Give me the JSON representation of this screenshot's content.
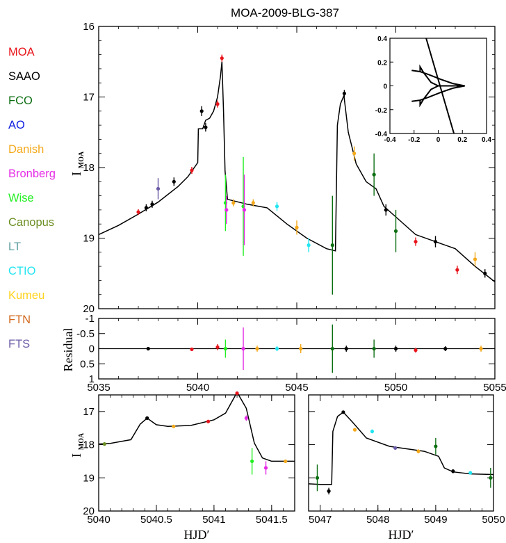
{
  "chart_data": {
    "type": "scatter",
    "title": "MOA-2009-BLG-387",
    "legend": {
      "placement": "left",
      "entries": [
        {
          "name": "MOA",
          "color": "#e8141b"
        },
        {
          "name": "SAAO",
          "color": "#000000"
        },
        {
          "name": "FCO",
          "color": "#0b6e11"
        },
        {
          "name": "AO",
          "color": "#1020e0"
        },
        {
          "name": "Danish",
          "color": "#f4a91a"
        },
        {
          "name": "Bronberg",
          "color": "#e62be6"
        },
        {
          "name": "Wise",
          "color": "#22ee22"
        },
        {
          "name": "Canopus",
          "color": "#6b8e23"
        },
        {
          "name": "LT",
          "color": "#5f9ea0"
        },
        {
          "name": "CTIO",
          "color": "#22e5f0"
        },
        {
          "name": "Kumeu",
          "color": "#ffd21a"
        },
        {
          "name": "FTN",
          "color": "#d2691e"
        },
        {
          "name": "FTS",
          "color": "#6a5aa6"
        }
      ]
    },
    "panels": {
      "main": {
        "ylabel": "I",
        "ylabel_sub": "MOA",
        "xlim": [
          5035,
          5055
        ],
        "ylim": [
          16,
          20
        ],
        "y_inverted": true,
        "xticks": [
          "5035",
          "5040",
          "5045",
          "5050",
          "5055"
        ],
        "yticks": [
          "16",
          "17",
          "18",
          "19",
          "20"
        ],
        "model": [
          [
            5035,
            18.95
          ],
          [
            5036,
            18.82
          ],
          [
            5037,
            18.66
          ],
          [
            5038,
            18.49
          ],
          [
            5039,
            18.27
          ],
          [
            5039.5,
            18.13
          ],
          [
            5040,
            17.93
          ],
          [
            5040.03,
            17.45
          ],
          [
            5040.25,
            17.45
          ],
          [
            5040.4,
            17.33
          ],
          [
            5040.6,
            17.3
          ],
          [
            5040.8,
            17.2
          ],
          [
            5041.0,
            17.0
          ],
          [
            5041.15,
            16.7
          ],
          [
            5041.22,
            16.5
          ],
          [
            5041.3,
            17.2
          ],
          [
            5041.38,
            18.05
          ],
          [
            5041.5,
            18.45
          ],
          [
            5042.5,
            18.52
          ],
          [
            5043.5,
            18.57
          ],
          [
            5044.5,
            18.8
          ],
          [
            5045.5,
            19.0
          ],
          [
            5046.5,
            19.15
          ],
          [
            5046.95,
            19.18
          ],
          [
            5047.05,
            17.4
          ],
          [
            5047.2,
            17.1
          ],
          [
            5047.38,
            16.98
          ],
          [
            5047.6,
            17.5
          ],
          [
            5048,
            17.95
          ],
          [
            5048.5,
            18.2
          ],
          [
            5049,
            18.3
          ],
          [
            5049.4,
            18.55
          ],
          [
            5050,
            18.7
          ],
          [
            5051,
            18.95
          ],
          [
            5052,
            19.05
          ],
          [
            5053,
            19.15
          ],
          [
            5054,
            19.4
          ],
          [
            5055,
            19.62
          ]
        ],
        "inset": {
          "xlim": [
            -0.4,
            0.4
          ],
          "ylim": [
            -0.4,
            0.4
          ],
          "xticks": [
            "-0.4",
            "-0.2",
            "0",
            "0.2",
            "0.4"
          ],
          "yticks": [
            "0.4",
            "0.2",
            "0",
            "-0.2",
            "-0.4"
          ],
          "caustic_upper": [
            [
              -0.22,
              0.13
            ],
            [
              -0.15,
              0.12
            ],
            [
              -0.08,
              0.095
            ],
            [
              0.02,
              0.055
            ],
            [
              0.12,
              0.02
            ],
            [
              0.22,
              0.0
            ],
            [
              0.1,
              0.0
            ],
            [
              0.0,
              0.0
            ],
            [
              -0.06,
              0.03
            ],
            [
              -0.12,
              0.11
            ],
            [
              -0.15,
              0.16
            ],
            [
              -0.15,
              0.12
            ],
            [
              -0.22,
              0.13
            ]
          ],
          "caustic_lower": [
            [
              -0.22,
              -0.13
            ],
            [
              -0.15,
              -0.12
            ],
            [
              -0.08,
              -0.095
            ],
            [
              0.02,
              -0.055
            ],
            [
              0.12,
              -0.02
            ],
            [
              0.22,
              0.0
            ],
            [
              0.1,
              0.0
            ],
            [
              0.0,
              0.0
            ],
            [
              -0.06,
              -0.03
            ],
            [
              -0.12,
              -0.11
            ],
            [
              -0.15,
              -0.16
            ],
            [
              -0.15,
              -0.12
            ],
            [
              -0.22,
              -0.13
            ]
          ],
          "trajectory": [
            [
              -0.1,
              0.4
            ],
            [
              0.015,
              0.0
            ],
            [
              0.13,
              -0.4
            ]
          ]
        },
        "points": [
          {
            "series": "SAAO",
            "x": 5037.4,
            "y": 18.57,
            "err": 0.05
          },
          {
            "series": "MOA",
            "x": 5037.0,
            "y": 18.63,
            "err": 0.04
          },
          {
            "series": "SAAO",
            "x": 5037.7,
            "y": 18.52,
            "err": 0.05
          },
          {
            "series": "FTS",
            "x": 5038.0,
            "y": 18.3,
            "err": 0.15
          },
          {
            "series": "SAAO",
            "x": 5038.8,
            "y": 18.2,
            "err": 0.06
          },
          {
            "series": "MOA",
            "x": 5039.7,
            "y": 18.04,
            "err": 0.05
          },
          {
            "series": "SAAO",
            "x": 5040.2,
            "y": 17.2,
            "err": 0.07
          },
          {
            "series": "SAAO",
            "x": 5040.4,
            "y": 17.43,
            "err": 0.06
          },
          {
            "series": "MOA",
            "x": 5041.0,
            "y": 17.1,
            "err": 0.05
          },
          {
            "series": "MOA",
            "x": 5041.22,
            "y": 16.45,
            "err": 0.05
          },
          {
            "series": "Wise",
            "x": 5041.4,
            "y": 18.5,
            "err": 0.4
          },
          {
            "series": "Bronberg",
            "x": 5041.45,
            "y": 18.6,
            "err": 0.2
          },
          {
            "series": "Wise",
            "x": 5042.3,
            "y": 18.55,
            "err": 0.7
          },
          {
            "series": "Bronberg",
            "x": 5042.35,
            "y": 18.6,
            "err": 0.5
          },
          {
            "series": "Danish",
            "x": 5041.8,
            "y": 18.5,
            "err": 0.05
          },
          {
            "series": "Danish",
            "x": 5042.8,
            "y": 18.5,
            "err": 0.05
          },
          {
            "series": "CTIO",
            "x": 5044.0,
            "y": 18.55,
            "err": 0.06
          },
          {
            "series": "Danish",
            "x": 5045.0,
            "y": 18.85,
            "err": 0.1
          },
          {
            "series": "CTIO",
            "x": 5045.6,
            "y": 19.1,
            "err": 0.1
          },
          {
            "series": "FCO",
            "x": 5046.8,
            "y": 19.1,
            "err": 0.7
          },
          {
            "series": "SAAO",
            "x": 5047.4,
            "y": 16.95,
            "err": 0.05
          },
          {
            "series": "Danish",
            "x": 5047.9,
            "y": 17.8,
            "err": 0.1
          },
          {
            "series": "FCO",
            "x": 5048.9,
            "y": 18.1,
            "err": 0.3
          },
          {
            "series": "SAAO",
            "x": 5049.5,
            "y": 18.6,
            "err": 0.08
          },
          {
            "series": "FCO",
            "x": 5050.0,
            "y": 18.9,
            "err": 0.3
          },
          {
            "series": "MOA",
            "x": 5051.0,
            "y": 19.05,
            "err": 0.06
          },
          {
            "series": "SAAO",
            "x": 5052.0,
            "y": 19.05,
            "err": 0.08
          },
          {
            "series": "MOA",
            "x": 5053.1,
            "y": 19.45,
            "err": 0.06
          },
          {
            "series": "Danish",
            "x": 5054.0,
            "y": 19.3,
            "err": 0.1
          },
          {
            "series": "SAAO",
            "x": 5054.5,
            "y": 19.5,
            "err": 0.06
          }
        ]
      },
      "residual": {
        "ylabel": "Residual",
        "ylim": [
          -1,
          1
        ],
        "y_inverted": true,
        "yticks": [
          "-1",
          "-0.5",
          "0",
          "0.5",
          "1"
        ],
        "xticks": [
          "5035",
          "5040",
          "5045",
          "5050",
          "5055"
        ],
        "points": [
          {
            "series": "SAAO",
            "x": 5037.5,
            "y": 0.0,
            "err": 0.05
          },
          {
            "series": "MOA",
            "x": 5039.7,
            "y": 0.02,
            "err": 0.05
          },
          {
            "series": "MOA",
            "x": 5041.0,
            "y": -0.05,
            "err": 0.1
          },
          {
            "series": "Wise",
            "x": 5041.4,
            "y": 0.0,
            "err": 0.3
          },
          {
            "series": "Bronberg",
            "x": 5042.3,
            "y": 0.0,
            "err": 0.7
          },
          {
            "series": "Danish",
            "x": 5043.0,
            "y": 0.0,
            "err": 0.1
          },
          {
            "series": "CTIO",
            "x": 5044.0,
            "y": 0.0,
            "err": 0.08
          },
          {
            "series": "Danish",
            "x": 5045.2,
            "y": 0.0,
            "err": 0.15
          },
          {
            "series": "FCO",
            "x": 5046.8,
            "y": 0.0,
            "err": 0.8
          },
          {
            "series": "SAAO",
            "x": 5047.5,
            "y": 0.0,
            "err": 0.1
          },
          {
            "series": "FCO",
            "x": 5048.9,
            "y": 0.0,
            "err": 0.3
          },
          {
            "series": "SAAO",
            "x": 5050.0,
            "y": 0.0,
            "err": 0.1
          },
          {
            "series": "MOA",
            "x": 5051.0,
            "y": 0.05,
            "err": 0.08
          },
          {
            "series": "SAAO",
            "x": 5052.5,
            "y": 0.0,
            "err": 0.08
          },
          {
            "series": "Danish",
            "x": 5054.3,
            "y": 0.0,
            "err": 0.1
          }
        ]
      },
      "zoom_left": {
        "xlabel": "HJD′",
        "ylabel": "I",
        "ylabel_sub": "MOA",
        "xlim": [
          5040.0,
          5041.7
        ],
        "ylim": [
          16.5,
          20
        ],
        "y_inverted": true,
        "xticks": [
          "5040",
          "5040.5",
          "5041",
          "5041.5"
        ],
        "yticks": [
          "17",
          "18",
          "19",
          "20"
        ],
        "model": [
          [
            5040.0,
            17.98
          ],
          [
            5040.1,
            17.96
          ],
          [
            5040.2,
            17.9
          ],
          [
            5040.28,
            17.85
          ],
          [
            5040.36,
            17.38
          ],
          [
            5040.42,
            17.2
          ],
          [
            5040.5,
            17.4
          ],
          [
            5040.6,
            17.45
          ],
          [
            5040.8,
            17.42
          ],
          [
            5041.0,
            17.25
          ],
          [
            5041.1,
            17.05
          ],
          [
            5041.2,
            16.42
          ],
          [
            5041.28,
            16.9
          ],
          [
            5041.35,
            17.95
          ],
          [
            5041.42,
            18.4
          ],
          [
            5041.5,
            18.5
          ],
          [
            5041.7,
            18.5
          ]
        ],
        "points": [
          {
            "series": "Canopus",
            "x": 5040.05,
            "y": 17.98,
            "err": 0.02
          },
          {
            "series": "SAAO",
            "x": 5040.42,
            "y": 17.2,
            "err": 0.03
          },
          {
            "series": "Danish",
            "x": 5040.65,
            "y": 17.45,
            "err": 0.03
          },
          {
            "series": "MOA",
            "x": 5040.95,
            "y": 17.3,
            "err": 0.04
          },
          {
            "series": "MOA",
            "x": 5041.2,
            "y": 16.45,
            "err": 0.04
          },
          {
            "series": "Bronberg",
            "x": 5041.28,
            "y": 17.2,
            "err": 0.08
          },
          {
            "series": "Wise",
            "x": 5041.33,
            "y": 18.5,
            "err": 0.4
          },
          {
            "series": "Bronberg",
            "x": 5041.45,
            "y": 18.7,
            "err": 0.2
          },
          {
            "series": "Danish",
            "x": 5041.62,
            "y": 18.5,
            "err": 0.04
          }
        ]
      },
      "zoom_right": {
        "xlabel": "HJD′",
        "xlim": [
          5046.8,
          5050.0
        ],
        "ylim": [
          16.5,
          20
        ],
        "y_inverted": true,
        "xticks": [
          "5047",
          "5048",
          "5049",
          "5050"
        ],
        "model": [
          [
            5046.8,
            19.18
          ],
          [
            5047.0,
            19.2
          ],
          [
            5047.2,
            19.2
          ],
          [
            5047.22,
            17.6
          ],
          [
            5047.3,
            17.15
          ],
          [
            5047.4,
            17.02
          ],
          [
            5047.55,
            17.3
          ],
          [
            5047.8,
            17.8
          ],
          [
            5048.2,
            18.05
          ],
          [
            5048.8,
            18.2
          ],
          [
            5049.05,
            18.35
          ],
          [
            5049.15,
            18.7
          ],
          [
            5049.3,
            18.82
          ],
          [
            5049.6,
            18.88
          ],
          [
            5050.0,
            18.9
          ]
        ],
        "points": [
          {
            "series": "FCO",
            "x": 5046.95,
            "y": 19.0,
            "err": 0.4
          },
          {
            "series": "SAAO",
            "x": 5047.15,
            "y": 19.4,
            "err": 0.1
          },
          {
            "series": "SAAO",
            "x": 5047.4,
            "y": 17.02,
            "err": 0.04
          },
          {
            "series": "Danish",
            "x": 5047.6,
            "y": 17.55,
            "err": 0.05
          },
          {
            "series": "CTIO",
            "x": 5047.9,
            "y": 17.6,
            "err": 0.06
          },
          {
            "series": "FTS",
            "x": 5048.3,
            "y": 18.1,
            "err": 0.05
          },
          {
            "series": "Danish",
            "x": 5048.7,
            "y": 18.2,
            "err": 0.06
          },
          {
            "series": "FCO",
            "x": 5049.0,
            "y": 18.05,
            "err": 0.25
          },
          {
            "series": "SAAO",
            "x": 5049.3,
            "y": 18.8,
            "err": 0.06
          },
          {
            "series": "CTIO",
            "x": 5049.6,
            "y": 18.85,
            "err": 0.05
          },
          {
            "series": "FCO",
            "x": 5049.95,
            "y": 19.0,
            "err": 0.3
          }
        ]
      }
    }
  }
}
